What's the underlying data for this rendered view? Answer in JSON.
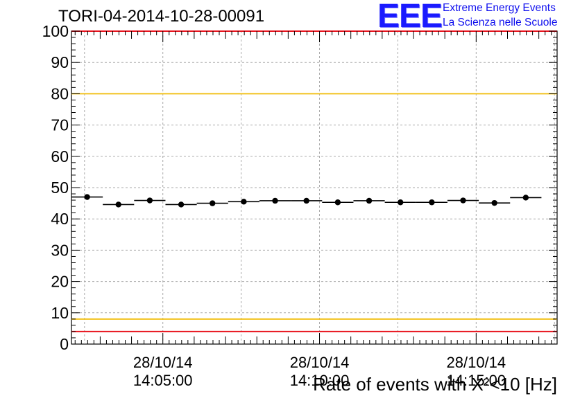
{
  "title": "TORI-04-2014-10-28-00091",
  "logo": {
    "mark": "EEE",
    "line1": "Extreme Energy Events",
    "line2": "La Scienza nelle Scuole",
    "color": "#1a1aff"
  },
  "chart_data": {
    "type": "scatter",
    "xlabel": "Rate of events with X²<10 [Hz]",
    "ylim": [
      0,
      100
    ],
    "grid": true,
    "x_ticks": [
      {
        "date": "28/10/14",
        "time": "14:05:00"
      },
      {
        "date": "28/10/14",
        "time": "14:10:00"
      },
      {
        "date": "28/10/14",
        "time": "14:15:00"
      }
    ],
    "y_ticks": [
      0,
      10,
      20,
      30,
      40,
      50,
      60,
      70,
      80,
      90,
      100
    ],
    "x_range": [
      "14:02:05",
      "14:17:35"
    ],
    "bin_width_min": 1.0,
    "points": [
      {
        "x": "14:02:35",
        "y": 47.0
      },
      {
        "x": "14:03:35",
        "y": 44.6
      },
      {
        "x": "14:04:35",
        "y": 45.9
      },
      {
        "x": "14:05:35",
        "y": 44.6
      },
      {
        "x": "14:06:35",
        "y": 45.0
      },
      {
        "x": "14:07:35",
        "y": 45.5
      },
      {
        "x": "14:08:35",
        "y": 45.8
      },
      {
        "x": "14:09:35",
        "y": 45.8
      },
      {
        "x": "14:10:35",
        "y": 45.3
      },
      {
        "x": "14:11:35",
        "y": 45.8
      },
      {
        "x": "14:12:35",
        "y": 45.3
      },
      {
        "x": "14:13:35",
        "y": 45.3
      },
      {
        "x": "14:14:35",
        "y": 45.9
      },
      {
        "x": "14:15:35",
        "y": 45.1
      },
      {
        "x": "14:16:35",
        "y": 46.8
      }
    ],
    "reference_lines": [
      {
        "y": 100,
        "color": "#e8141e"
      },
      {
        "y": 80,
        "color": "#f2c21e"
      },
      {
        "y": 8,
        "color": "#f2c21e"
      },
      {
        "y": 4,
        "color": "#e8141e"
      }
    ]
  }
}
